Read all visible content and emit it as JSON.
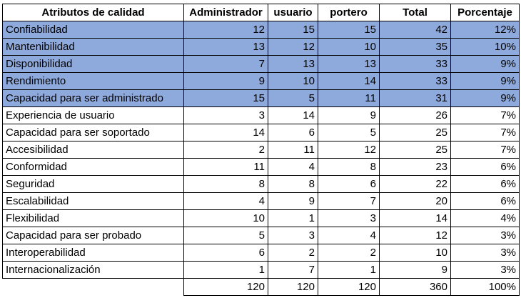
{
  "table": {
    "headers": [
      "Atributos de calidad",
      "Administrador",
      "usuario",
      "portero",
      "Total",
      "Porcentaje"
    ],
    "highlight_color": "#8EA9DB",
    "rows": [
      {
        "attr": "Confiabilidad",
        "admin": "12",
        "usuario": "15",
        "portero": "15",
        "total": "42",
        "pct": "12%",
        "highlight": true
      },
      {
        "attr": "Mantenibilidad",
        "admin": "13",
        "usuario": "12",
        "portero": "10",
        "total": "35",
        "pct": "10%",
        "highlight": true
      },
      {
        "attr": "Disponibilidad",
        "admin": "7",
        "usuario": "13",
        "portero": "13",
        "total": "33",
        "pct": "9%",
        "highlight": true
      },
      {
        "attr": "Rendimiento",
        "admin": "9",
        "usuario": "10",
        "portero": "14",
        "total": "33",
        "pct": "9%",
        "highlight": true
      },
      {
        "attr": "Capacidad para ser administrado",
        "admin": "15",
        "usuario": "5",
        "portero": "11",
        "total": "31",
        "pct": "9%",
        "highlight": true
      },
      {
        "attr": "Experiencia de usuario",
        "admin": "3",
        "usuario": "14",
        "portero": "9",
        "total": "26",
        "pct": "7%",
        "highlight": false
      },
      {
        "attr": "Capacidad para ser soportado",
        "admin": "14",
        "usuario": "6",
        "portero": "5",
        "total": "25",
        "pct": "7%",
        "highlight": false
      },
      {
        "attr": "Accesibilidad",
        "admin": "2",
        "usuario": "11",
        "portero": "12",
        "total": "25",
        "pct": "7%",
        "highlight": false
      },
      {
        "attr": "Conformidad",
        "admin": "11",
        "usuario": "4",
        "portero": "8",
        "total": "23",
        "pct": "6%",
        "highlight": false
      },
      {
        "attr": "Seguridad",
        "admin": "8",
        "usuario": "8",
        "portero": "6",
        "total": "22",
        "pct": "6%",
        "highlight": false
      },
      {
        "attr": "Escalabilidad",
        "admin": "4",
        "usuario": "9",
        "portero": "7",
        "total": "20",
        "pct": "6%",
        "highlight": false
      },
      {
        "attr": "Flexibilidad",
        "admin": "10",
        "usuario": "1",
        "portero": "3",
        "total": "14",
        "pct": "4%",
        "highlight": false
      },
      {
        "attr": "Capacidad para ser probado",
        "admin": "5",
        "usuario": "3",
        "portero": "4",
        "total": "12",
        "pct": "3%",
        "highlight": false
      },
      {
        "attr": "Interoperabilidad",
        "admin": "6",
        "usuario": "2",
        "portero": "2",
        "total": "10",
        "pct": "3%",
        "highlight": false
      },
      {
        "attr": "Internacionalización",
        "admin": "1",
        "usuario": "7",
        "portero": "1",
        "total": "9",
        "pct": "3%",
        "highlight": false
      }
    ],
    "totals": {
      "admin": "120",
      "usuario": "120",
      "portero": "120",
      "total": "360",
      "pct": "100%"
    }
  }
}
